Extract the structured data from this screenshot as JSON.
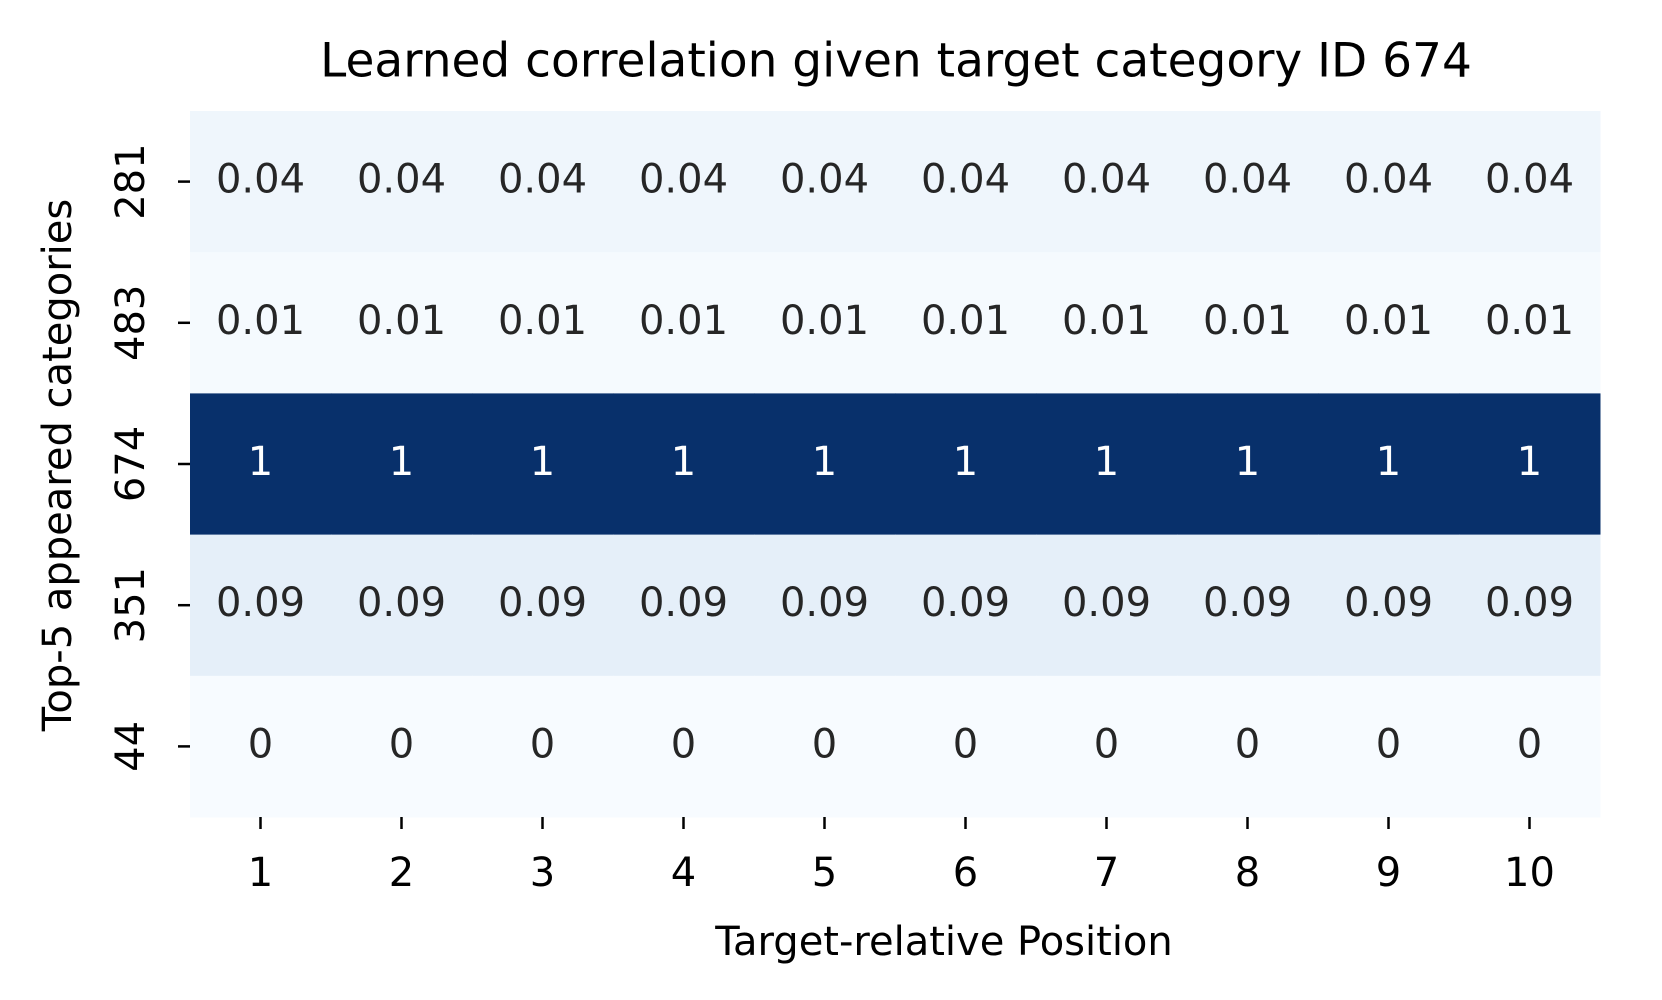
{
  "chart_data": {
    "type": "heatmap",
    "title": "Learned correlation given target category ID 674",
    "x_label": "Target-relative Position",
    "y_label": "Top-5 appeared categories",
    "x_categories": [
      1,
      2,
      3,
      4,
      5,
      6,
      7,
      8,
      9,
      10
    ],
    "y_categories": [
      281,
      483,
      674,
      351,
      44
    ],
    "values": [
      [
        0.04,
        0.04,
        0.04,
        0.04,
        0.04,
        0.04,
        0.04,
        0.04,
        0.04,
        0.04
      ],
      [
        0.01,
        0.01,
        0.01,
        0.01,
        0.01,
        0.01,
        0.01,
        0.01,
        0.01,
        0.01
      ],
      [
        1,
        1,
        1,
        1,
        1,
        1,
        1,
        1,
        1,
        1
      ],
      [
        0.09,
        0.09,
        0.09,
        0.09,
        0.09,
        0.09,
        0.09,
        0.09,
        0.09,
        0.09
      ],
      [
        0,
        0,
        0,
        0,
        0,
        0,
        0,
        0,
        0,
        0
      ]
    ],
    "clim": [
      0,
      1
    ],
    "colormap": [
      "#f7fbff",
      "#deebf7",
      "#c6dbef",
      "#9ecae1",
      "#6baed6",
      "#4292c6",
      "#2171b5",
      "#08519c",
      "#08306b"
    ],
    "annotate": true
  }
}
